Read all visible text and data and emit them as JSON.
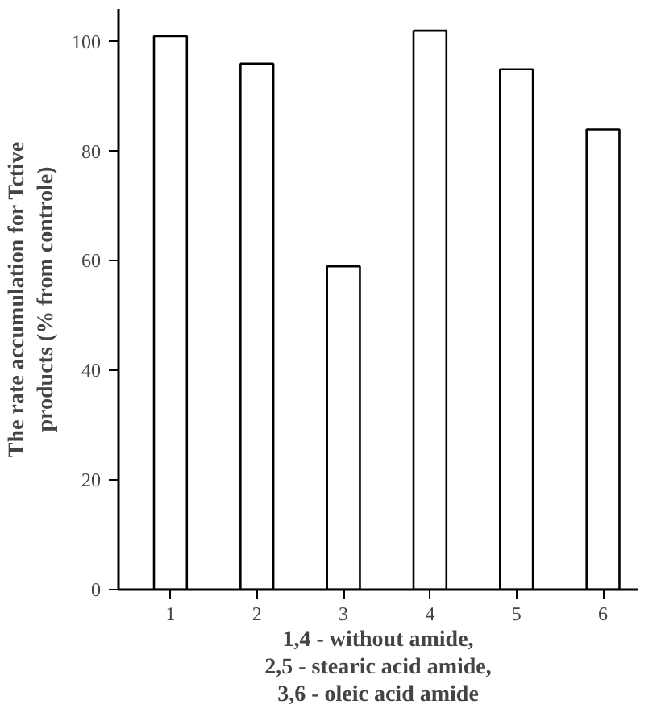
{
  "chart_data": {
    "type": "bar",
    "ylabel": "The rate accumulation for Tctive\nproducts (% from controle)",
    "categories": [
      "1",
      "2",
      "3",
      "4",
      "5",
      "6"
    ],
    "values": [
      101,
      96,
      59,
      102,
      95,
      84
    ],
    "color": "#ffffff",
    "ylim": [
      0,
      106
    ],
    "yticks": [
      0,
      20,
      40,
      60,
      80,
      100
    ],
    "grid": false,
    "annotations": [
      "1,4 - without amide,",
      "2,5 - stearic acid amide,",
      "3,6 - oleic acid amide"
    ]
  }
}
